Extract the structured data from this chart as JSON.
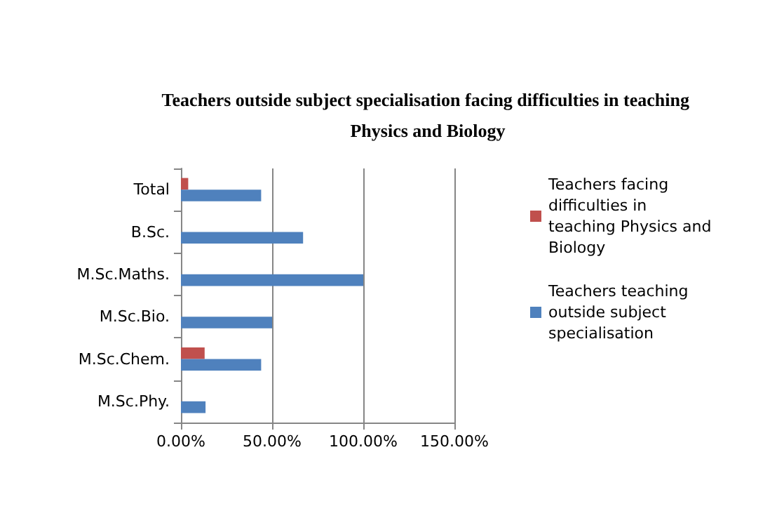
{
  "chart_data": {
    "type": "bar",
    "orientation": "horizontal",
    "title": "Teachers outside subject specialisation facing difficulties in teaching Physics and Biology",
    "categories": [
      "Total",
      "B.Sc.",
      "M.Sc.Maths.",
      "M.Sc.Bio.",
      "M.Sc.Chem.",
      "M.Sc.Phy."
    ],
    "series": [
      {
        "name": "Teachers facing difficulties in teaching Physics and Biology",
        "color": "#c0504d",
        "values": [
          4,
          0,
          0,
          0,
          13,
          0
        ]
      },
      {
        "name": "Teachers teaching outside subject specialisation",
        "color": "#4f81bd",
        "values": [
          44,
          67,
          100,
          50,
          44,
          13.5
        ]
      }
    ],
    "xlim": [
      0,
      150
    ],
    "xticks": [
      {
        "value": 0,
        "label": "0.00%"
      },
      {
        "value": 50,
        "label": "50.00%"
      },
      {
        "value": 100,
        "label": "100.00%"
      },
      {
        "value": 150,
        "label": "150.00%"
      }
    ],
    "grid": "x",
    "legend": "right"
  }
}
